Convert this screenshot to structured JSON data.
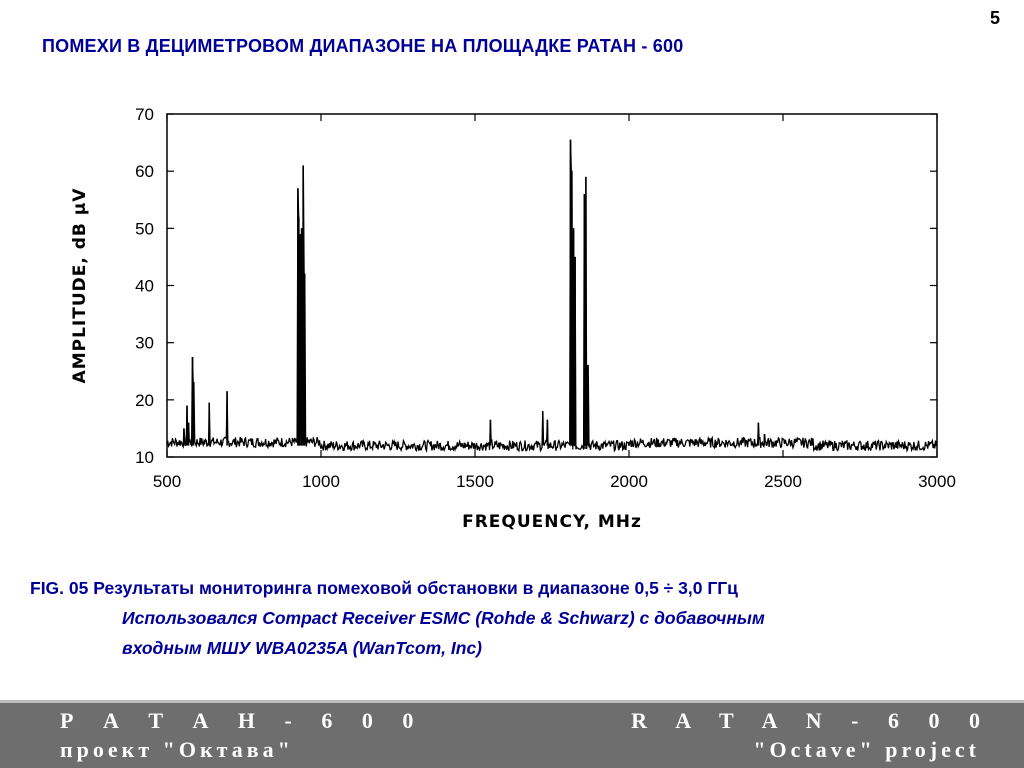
{
  "slide": {
    "number": "5",
    "title": "ПОМЕХИ  В  ДЕЦИМЕТРОВОМ  ДИАПАЗОНЕ  НА  ПЛОЩАДКЕ  РАТАН - 600"
  },
  "chart_data": {
    "type": "line",
    "title": "",
    "xlabel": "FREQUENCY, MHz",
    "ylabel": "AMPLITUDE, dB µV",
    "xlim": [
      500,
      3000
    ],
    "ylim": [
      10,
      70
    ],
    "x_ticks": [
      500,
      1000,
      1500,
      2000,
      2500,
      3000
    ],
    "y_ticks": [
      10,
      20,
      30,
      40,
      50,
      60,
      70
    ],
    "grid": false,
    "noise_floor": 12,
    "series": [
      {
        "color": "#000000",
        "spikes": [
          {
            "x": 555,
            "y": 15
          },
          {
            "x": 565,
            "y": 19
          },
          {
            "x": 570,
            "y": 16
          },
          {
            "x": 583,
            "y": 27.5
          },
          {
            "x": 586,
            "y": 23
          },
          {
            "x": 637,
            "y": 19.5
          },
          {
            "x": 695,
            "y": 21.5
          },
          {
            "x": 925,
            "y": 57
          },
          {
            "x": 928,
            "y": 52
          },
          {
            "x": 932,
            "y": 49
          },
          {
            "x": 937,
            "y": 50
          },
          {
            "x": 942,
            "y": 61
          },
          {
            "x": 946,
            "y": 42
          },
          {
            "x": 1550,
            "y": 16.5
          },
          {
            "x": 1720,
            "y": 18
          },
          {
            "x": 1735,
            "y": 16.5
          },
          {
            "x": 1810,
            "y": 65.5
          },
          {
            "x": 1814,
            "y": 60
          },
          {
            "x": 1820,
            "y": 50
          },
          {
            "x": 1825,
            "y": 45
          },
          {
            "x": 1855,
            "y": 56
          },
          {
            "x": 1860,
            "y": 59
          },
          {
            "x": 1866,
            "y": 26
          },
          {
            "x": 2420,
            "y": 16
          },
          {
            "x": 2440,
            "y": 14
          }
        ]
      }
    ]
  },
  "caption": {
    "line1": "FIG. 05  Результаты мониторинга  помеховой  обстановки  в диапазоне 0,5 ÷ 3,0 ГГц",
    "line2": "Использовался Compact Receiver ESMC (Rohde & Schwarz) с добавочным",
    "line3": "входным МШУ WBA0235A (WanTcom, Inc)"
  },
  "footer": {
    "left_line1": "Р А Т А Н - 6 0 0",
    "left_line2": "проект \"Октава\"",
    "right_line1": "R A T A N - 6 0 0",
    "right_line2": "\"Octave\" project"
  }
}
